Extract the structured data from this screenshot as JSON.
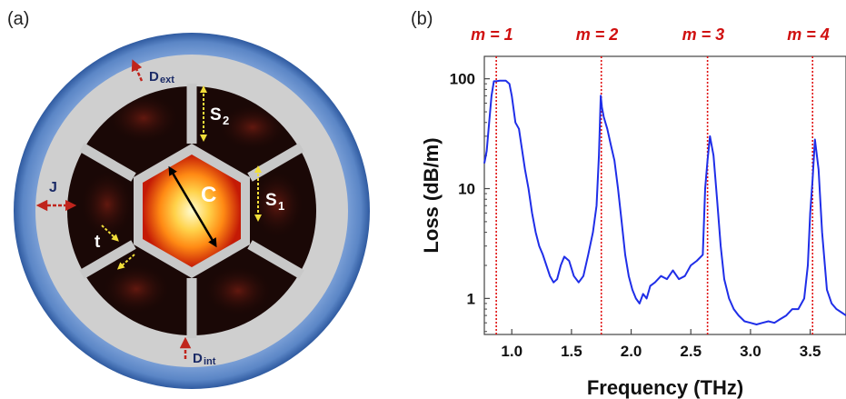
{
  "panels": {
    "a_label": "(a)",
    "b_label": "(b)"
  },
  "schematic": {
    "labels": {
      "core": "C",
      "d_ext": "D",
      "d_ext_sub": "ext",
      "d_int": "D",
      "d_int_sub": "int",
      "j": "J",
      "t": "t",
      "s1": "S",
      "s1_sub": "1",
      "s2": "S",
      "s2_sub": "2"
    },
    "colors": {
      "outer_ring": "#5b86c6",
      "cladding": "#cfcfcf",
      "struts": "#c8c8c8",
      "cells": "#1a0806",
      "core_center": "#fffbd0",
      "core_edge": "#c41a06",
      "arrow_red": "#c0241c",
      "arrow_yellow": "#f2de3a"
    }
  },
  "chart_data": {
    "type": "line",
    "xlabel": "Frequency (THz)",
    "ylabel": "Loss (dB/m)",
    "xlim": [
      0.77,
      3.8
    ],
    "ylim": [
      0.47,
      160
    ],
    "yscale": "log",
    "x_ticks": [
      "1.0",
      "1.5",
      "2.0",
      "2.5",
      "3.0",
      "3.5"
    ],
    "y_ticks": [
      "1",
      "10",
      "100"
    ],
    "resonances": [
      {
        "label": "m = 1",
        "x": 0.87
      },
      {
        "label": "m = 2",
        "x": 1.75
      },
      {
        "label": "m = 3",
        "x": 2.64
      },
      {
        "label": "m = 4",
        "x": 3.52
      }
    ],
    "line_color": "#1f2ee8",
    "marker_color": "#e01010",
    "series": [
      {
        "x": [
          0.77,
          0.79,
          0.81,
          0.83,
          0.85,
          0.87,
          0.9,
          0.95,
          0.98,
          1.0,
          1.03,
          1.06,
          1.08,
          1.11,
          1.14,
          1.17,
          1.2,
          1.23,
          1.26,
          1.29,
          1.32,
          1.35,
          1.38,
          1.41,
          1.44,
          1.48,
          1.52,
          1.56,
          1.6,
          1.64,
          1.68,
          1.71,
          1.73,
          1.745,
          1.755,
          1.77,
          1.8,
          1.83,
          1.86,
          1.89,
          1.92,
          1.95,
          1.98,
          2.01,
          2.04,
          2.07,
          2.1,
          2.13,
          2.16,
          2.2,
          2.25,
          2.3,
          2.35,
          2.4,
          2.45,
          2.5,
          2.55,
          2.6,
          2.62,
          2.64,
          2.66,
          2.69,
          2.72,
          2.75,
          2.78,
          2.82,
          2.86,
          2.9,
          2.95,
          3.0,
          3.05,
          3.1,
          3.15,
          3.2,
          3.25,
          3.3,
          3.35,
          3.4,
          3.45,
          3.48,
          3.5,
          3.52,
          3.54,
          3.57,
          3.6,
          3.64,
          3.68,
          3.72,
          3.76,
          3.8
        ],
        "y": [
          17,
          22,
          40,
          70,
          95,
          95,
          96,
          96,
          90,
          70,
          40,
          35,
          25,
          15,
          10,
          6,
          4,
          3,
          2.5,
          2,
          1.6,
          1.4,
          1.5,
          2,
          2.4,
          2.2,
          1.6,
          1.4,
          1.6,
          2.5,
          4,
          7,
          20,
          70,
          55,
          45,
          35,
          25,
          18,
          10,
          5,
          2.5,
          1.6,
          1.2,
          1.0,
          0.9,
          1.1,
          1.0,
          1.3,
          1.4,
          1.6,
          1.5,
          1.8,
          1.5,
          1.6,
          2,
          2.2,
          2.5,
          10,
          18,
          30,
          20,
          8,
          3,
          1.5,
          1.0,
          0.8,
          0.7,
          0.62,
          0.6,
          0.58,
          0.6,
          0.62,
          0.6,
          0.65,
          0.7,
          0.8,
          0.8,
          1.0,
          2,
          6,
          12,
          28,
          15,
          4,
          1.2,
          0.9,
          0.8,
          0.75,
          0.7
        ]
      }
    ]
  }
}
